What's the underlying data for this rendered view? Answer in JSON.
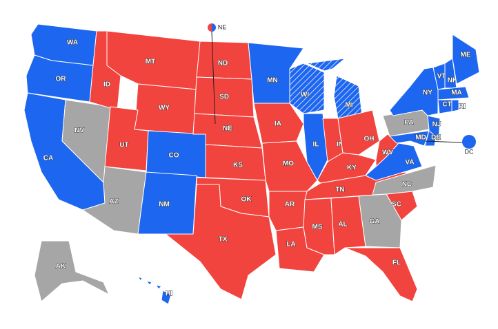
{
  "states": [
    {
      "label": "WA",
      "fill": "#1d66f0"
    },
    {
      "label": "OR",
      "fill": "#1d66f0"
    },
    {
      "label": "CA",
      "fill": "#1d66f0"
    },
    {
      "label": "NV",
      "fill": "#a6a6a6"
    },
    {
      "label": "ID",
      "fill": "#f2443f"
    },
    {
      "label": "MT",
      "fill": "#f2443f"
    },
    {
      "label": "WY",
      "fill": "#f2443f"
    },
    {
      "label": "UT",
      "fill": "#f2443f"
    },
    {
      "label": "CO",
      "fill": "#1d66f0"
    },
    {
      "label": "AZ",
      "fill": "#a6a6a6"
    },
    {
      "label": "NM",
      "fill": "#1d66f0"
    },
    {
      "label": "ND",
      "fill": "#f2443f"
    },
    {
      "label": "SD",
      "fill": "#f2443f"
    },
    {
      "label": "NE",
      "fill": "#f2443f"
    },
    {
      "label": "KS",
      "fill": "#f2443f"
    },
    {
      "label": "OK",
      "fill": "#f2443f"
    },
    {
      "label": "TX",
      "fill": "#f2443f"
    },
    {
      "label": "MN",
      "fill": "#1d66f0"
    },
    {
      "label": "IA",
      "fill": "#f2443f"
    },
    {
      "label": "MO",
      "fill": "#f2443f"
    },
    {
      "label": "AR",
      "fill": "#f2443f"
    },
    {
      "label": "LA",
      "fill": "#f2443f"
    },
    {
      "label": "WI",
      "fill": "#1d66f0",
      "hatched": true
    },
    {
      "label": "IL",
      "fill": "#1d66f0"
    },
    {
      "label": "MI",
      "fill": "#1d66f0",
      "hatched": true
    },
    {
      "label": "IN",
      "fill": "#f2443f"
    },
    {
      "label": "OH",
      "fill": "#f2443f"
    },
    {
      "label": "KY",
      "fill": "#f2443f"
    },
    {
      "label": "TN",
      "fill": "#f2443f"
    },
    {
      "label": "MS",
      "fill": "#f2443f"
    },
    {
      "label": "AL",
      "fill": "#f2443f"
    },
    {
      "label": "GA",
      "fill": "#a6a6a6"
    },
    {
      "label": "FL",
      "fill": "#f2443f"
    },
    {
      "label": "SC",
      "fill": "#f2443f"
    },
    {
      "label": "NC",
      "fill": "#a6a6a6"
    },
    {
      "label": "VA",
      "fill": "#1d66f0"
    },
    {
      "label": "WV",
      "fill": "#f2443f"
    },
    {
      "label": "PA",
      "fill": "#a6a6a6"
    },
    {
      "label": "NY",
      "fill": "#1d66f0"
    },
    {
      "label": "NJ",
      "fill": "#1d66f0"
    },
    {
      "label": "MD",
      "fill": "#1d66f0"
    },
    {
      "label": "DE",
      "fill": "#1d66f0"
    },
    {
      "label": "VT",
      "fill": "#1d66f0"
    },
    {
      "label": "NH",
      "fill": "#1d66f0"
    },
    {
      "label": "ME",
      "fill": "#1d66f0"
    },
    {
      "label": "MA",
      "fill": "#1d66f0"
    },
    {
      "label": "CT",
      "fill": "#1d66f0"
    },
    {
      "label": "RI",
      "fill": "#1d66f0"
    },
    {
      "label": "AK",
      "fill": "#a6a6a6"
    },
    {
      "label": "HI",
      "fill": "#1d66f0"
    }
  ],
  "markers": [
    {
      "label": "NE",
      "colors": [
        "#f2443f",
        "#1d66f0"
      ]
    },
    {
      "label": "DC",
      "colors": [
        "#1d66f0"
      ]
    }
  ]
}
